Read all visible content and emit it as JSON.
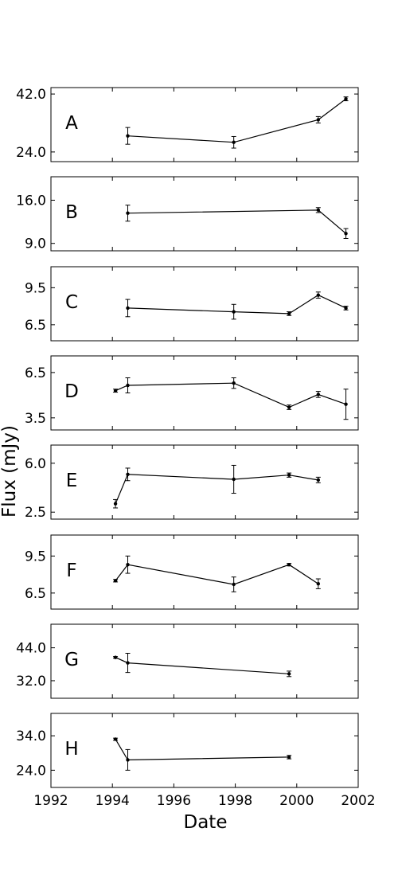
{
  "figure": {
    "ylabel": "Flux (mJy)",
    "xlabel": "Date",
    "xlim": [
      1992,
      2002
    ],
    "xticks": [
      "1992",
      "1994",
      "1996",
      "1998",
      "2000",
      "2002"
    ]
  },
  "chart_data": [
    {
      "type": "line",
      "panel": "A",
      "ylim": [
        21,
        44
      ],
      "yticks": [
        "24.0",
        "42.0"
      ],
      "points": [
        {
          "x": 1994.5,
          "y": 29.0,
          "err": 2.6
        },
        {
          "x": 1997.95,
          "y": 27.0,
          "err": 1.8
        },
        {
          "x": 2000.7,
          "y": 34.0,
          "err": 1.0
        },
        {
          "x": 2001.6,
          "y": 40.5,
          "err": 0.6
        }
      ]
    },
    {
      "type": "line",
      "panel": "B",
      "ylim": [
        7.8,
        19.8
      ],
      "yticks": [
        "9.0",
        "16.0"
      ],
      "points": [
        {
          "x": 1994.5,
          "y": 13.9,
          "err": 1.3
        },
        {
          "x": 2000.7,
          "y": 14.4,
          "err": 0.4
        },
        {
          "x": 2001.6,
          "y": 10.6,
          "err": 0.8
        }
      ]
    },
    {
      "type": "line",
      "panel": "C",
      "ylim": [
        5.2,
        11.2
      ],
      "yticks": [
        "6.5",
        "9.5"
      ],
      "points": [
        {
          "x": 1994.5,
          "y": 7.85,
          "err": 0.7
        },
        {
          "x": 1997.95,
          "y": 7.55,
          "err": 0.6
        },
        {
          "x": 2000.7,
          "y": 8.9,
          "err": 0.25
        },
        {
          "x": 1999.75,
          "y": 7.4,
          "err": 0.15
        },
        {
          "x": 2001.6,
          "y": 7.85,
          "err": 0.15
        }
      ]
    },
    {
      "type": "line",
      "panel": "D",
      "ylim": [
        2.7,
        7.6
      ],
      "yticks": [
        "3.5",
        "6.5"
      ],
      "points": [
        {
          "x": 1994.1,
          "y": 5.3,
          "err": 0.1
        },
        {
          "x": 1994.5,
          "y": 5.65,
          "err": 0.5
        },
        {
          "x": 1997.95,
          "y": 5.8,
          "err": 0.35
        },
        {
          "x": 1999.75,
          "y": 4.2,
          "err": 0.15
        },
        {
          "x": 2000.7,
          "y": 5.05,
          "err": 0.2
        },
        {
          "x": 2001.6,
          "y": 4.4,
          "err": 1.0
        }
      ]
    },
    {
      "type": "line",
      "panel": "E",
      "ylim": [
        2.0,
        7.3
      ],
      "yticks": [
        "2.5",
        "6.0"
      ],
      "points": [
        {
          "x": 1994.1,
          "y": 3.1,
          "err": 0.3
        },
        {
          "x": 1994.5,
          "y": 5.2,
          "err": 0.45
        },
        {
          "x": 1997.95,
          "y": 4.85,
          "err": 1.0
        },
        {
          "x": 1999.75,
          "y": 5.15,
          "err": 0.15
        },
        {
          "x": 2000.7,
          "y": 4.8,
          "err": 0.2
        }
      ]
    },
    {
      "type": "line",
      "panel": "F",
      "ylim": [
        5.2,
        11.2
      ],
      "yticks": [
        "6.5",
        "9.5"
      ],
      "points": [
        {
          "x": 1994.1,
          "y": 7.5,
          "err": 0.1
        },
        {
          "x": 1994.5,
          "y": 8.8,
          "err": 0.7
        },
        {
          "x": 1997.95,
          "y": 7.2,
          "err": 0.6
        },
        {
          "x": 1999.75,
          "y": 8.8,
          "err": 0.1
        },
        {
          "x": 2000.7,
          "y": 7.25,
          "err": 0.4
        }
      ]
    },
    {
      "type": "line",
      "panel": "G",
      "ylim": [
        25.6,
        52.6
      ],
      "yticks": [
        "32.0",
        "44.0"
      ],
      "points": [
        {
          "x": 1994.1,
          "y": 40.5,
          "err": 0.3
        },
        {
          "x": 1994.5,
          "y": 38.5,
          "err": 3.5
        },
        {
          "x": 1999.75,
          "y": 34.5,
          "err": 1.0
        }
      ]
    },
    {
      "type": "line",
      "panel": "H",
      "ylim": [
        19.0,
        40.5
      ],
      "yticks": [
        "24.0",
        "34.0"
      ],
      "points": [
        {
          "x": 1994.1,
          "y": 33.0,
          "err": 0.3
        },
        {
          "x": 1994.5,
          "y": 27.0,
          "err": 3.0
        },
        {
          "x": 1999.75,
          "y": 27.8,
          "err": 0.5
        }
      ]
    }
  ]
}
